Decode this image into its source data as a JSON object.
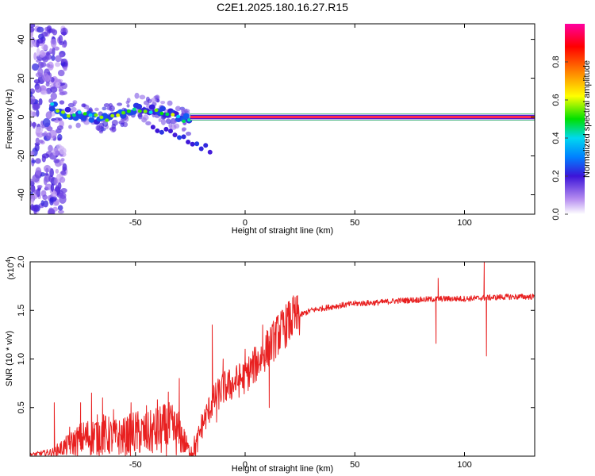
{
  "title": "C2E1.2025.180.16.27.R15",
  "chart_data": [
    {
      "type": "heatmap",
      "xlabel": "Height of straight line (km)",
      "ylabel": "Frequency (Hz)",
      "xlim": [
        -98,
        132
      ],
      "ylim": [
        -50,
        48
      ],
      "xticks": [
        -50,
        0,
        50,
        100
      ],
      "xtick_labels": [
        "-50",
        "0",
        "50",
        "100"
      ],
      "yticks": [
        -40,
        -20,
        0,
        20,
        40
      ],
      "ytick_labels": [
        "-40",
        "-20",
        "0",
        "20",
        "40"
      ],
      "grid": false,
      "colorbar": {
        "label": "Normalized spectral amplitude",
        "range": [
          0,
          1
        ],
        "ticks": [
          0,
          0.2,
          0.4,
          0.6,
          0.8
        ],
        "tick_labels": [
          "0.0",
          "0.2",
          "0.4",
          "0.6",
          "0.8"
        ],
        "colors": [
          "#ffffff",
          "#b58cf0",
          "#3c14d8",
          "#00d8f0",
          "#00e000",
          "#ffff00",
          "#ff8000",
          "#ff0000",
          "#ff00a0"
        ]
      },
      "carrier": {
        "x_start": -25,
        "x_end": 132,
        "freq": 0,
        "amplitude": 1.0
      },
      "drift_track": {
        "x": [
          -88,
          -82,
          -75,
          -70,
          -65,
          -60,
          -55,
          -50,
          -45,
          -40,
          -35,
          -30,
          -25
        ],
        "y": [
          6,
          2,
          1,
          0,
          -1,
          0,
          2,
          5,
          3,
          4,
          2,
          0,
          -2
        ],
        "amplitude": 0.55
      },
      "low_height_noise": {
        "x_range": [
          -98,
          -82
        ],
        "y_range": [
          -50,
          48
        ],
        "amplitude": 0.15
      }
    },
    {
      "type": "line",
      "xlabel": "Height of straight line (km)",
      "ylabel": "SNR (10 * v/v)",
      "y_multiplier": "(x10",
      "y_multiplier_exp": "4",
      "y_multiplier_close": ")",
      "xlim": [
        -98,
        132
      ],
      "ylim": [
        0,
        2.0
      ],
      "xticks": [
        -50,
        0,
        50,
        100
      ],
      "xtick_labels": [
        "-50",
        "0",
        "50",
        "100"
      ],
      "yticks": [
        0.5,
        1.0,
        1.5,
        2.0
      ],
      "ytick_labels": [
        "0.5",
        "1.0",
        "1.5",
        "2.0"
      ],
      "grid": false,
      "series": [
        {
          "color": "#e82020",
          "envelope_x": [
            -98,
            -88,
            -80,
            -75,
            -70,
            -65,
            -60,
            -55,
            -50,
            -45,
            -40,
            -35,
            -30,
            -27,
            -25,
            -22,
            -20,
            -15,
            -10,
            -5,
            0,
            5,
            10,
            15,
            20,
            25,
            30,
            40,
            50,
            60,
            70,
            80,
            90,
            100,
            110,
            120,
            132
          ],
          "envelope_y": [
            0.02,
            0.05,
            0.15,
            0.22,
            0.26,
            0.28,
            0.24,
            0.25,
            0.3,
            0.28,
            0.32,
            0.35,
            0.3,
            0.15,
            0.05,
            0.12,
            0.3,
            0.55,
            0.7,
            0.75,
            0.82,
            0.95,
            1.1,
            1.25,
            1.38,
            1.45,
            1.5,
            1.54,
            1.57,
            1.58,
            1.6,
            1.61,
            1.62,
            1.62,
            1.63,
            1.64,
            1.64
          ],
          "spikes": [
            {
              "x": -87,
              "y": 0.55
            },
            {
              "x": -80,
              "y": 0.3
            },
            {
              "x": -75,
              "y": 0.55
            },
            {
              "x": -70,
              "y": 0.65
            },
            {
              "x": -65,
              "y": 0.6
            },
            {
              "x": -60,
              "y": 0.48
            },
            {
              "x": -52,
              "y": 0.55
            },
            {
              "x": -45,
              "y": 0.52
            },
            {
              "x": -40,
              "y": 0.58
            },
            {
              "x": -35,
              "y": 0.66
            },
            {
              "x": -30,
              "y": 0.8
            },
            {
              "x": -15,
              "y": 1.35
            },
            {
              "x": -13,
              "y": 0.35
            },
            {
              "x": -10,
              "y": 1.0
            },
            {
              "x": 0,
              "y": 1.1
            },
            {
              "x": 8,
              "y": 1.35
            },
            {
              "x": 11,
              "y": 0.5
            },
            {
              "x": 15,
              "y": 1.45
            },
            {
              "x": 22,
              "y": 1.65
            },
            {
              "x": 87,
              "y": 1.16
            },
            {
              "x": 88,
              "y": 1.83
            },
            {
              "x": 109,
              "y": 2.0
            },
            {
              "x": 110,
              "y": 1.03
            }
          ]
        }
      ]
    }
  ]
}
